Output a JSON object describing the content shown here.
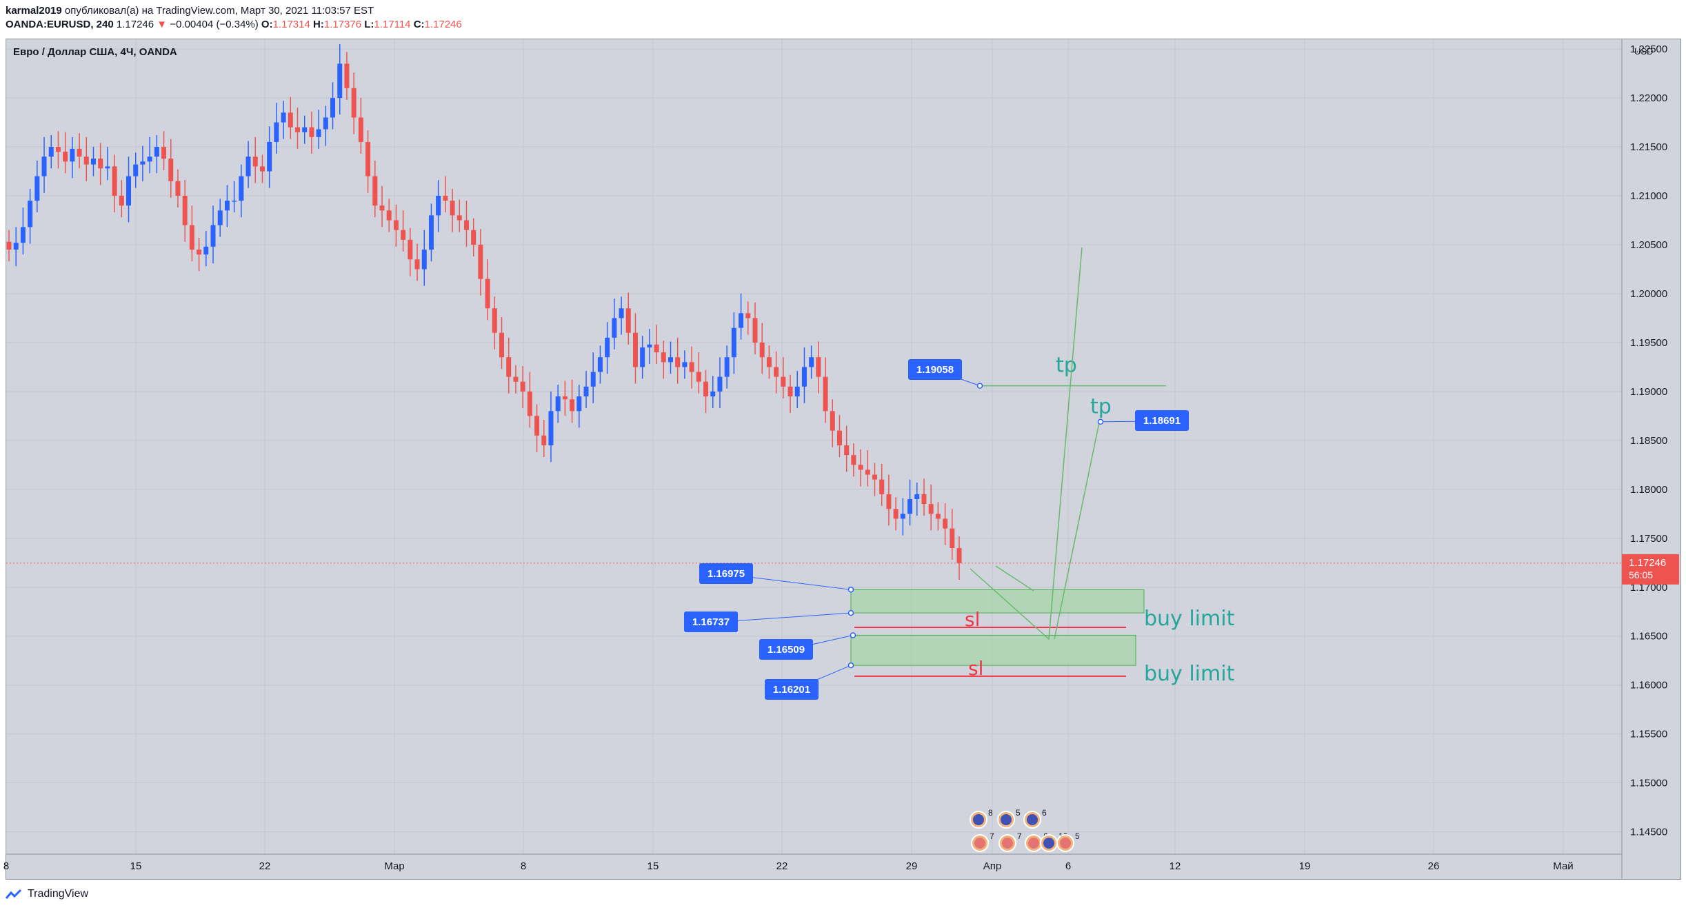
{
  "header": {
    "publisher": "karmal2019",
    "publish_text": "опубликовал(а) на TradingView.com, Март 30, 2021 11:03:57 EST",
    "symbol": "OANDA:EURUSD, 240",
    "last": "1.17246",
    "change": "−0.00404 (−0.34%)",
    "o_label": "O:",
    "o_value": "1.17314",
    "h_label": "H:",
    "h_value": "1.17376",
    "l_label": "L:",
    "l_value": "1.17114",
    "c_label": "C:",
    "c_value": "1.17246"
  },
  "symbol_title": "Евро / Доллар США, 4Ч, OANDA",
  "footer": {
    "brand": "TradingView"
  },
  "colors": {
    "up": "#2962ff",
    "down": "#ef5350",
    "zone_fill": "#a5d6a7",
    "zone_stroke": "#4caf50",
    "tp": "#26a69a",
    "sl": "#f23645",
    "label_bg": "#2962ff"
  },
  "chart_data": {
    "type": "candlestick",
    "currency": "USD",
    "y_ticks": [
      "1.14500",
      "1.15000",
      "1.15500",
      "1.16000",
      "1.16500",
      "1.17000",
      "1.17500",
      "1.18000",
      "1.18500",
      "1.19000",
      "1.19500",
      "1.20000",
      "1.20500",
      "1.21000",
      "1.21500",
      "1.22000",
      "1.22500"
    ],
    "y_range": [
      1.143,
      1.2255
    ],
    "x_ticks": [
      "8",
      "15",
      "22",
      "Мар",
      "8",
      "15",
      "22",
      "29",
      "Апр",
      "6",
      "12",
      "19",
      "26",
      "Май"
    ],
    "current_price": "1.17246",
    "countdown": "56:05",
    "close_path": [
      1.2045,
      1.2052,
      1.2068,
      1.2095,
      1.212,
      1.214,
      1.215,
      1.2145,
      1.2135,
      1.2148,
      1.214,
      1.2132,
      1.2138,
      1.2128,
      1.213,
      1.21,
      1.209,
      1.212,
      1.2132,
      1.2135,
      1.214,
      1.215,
      1.2138,
      1.2115,
      1.21,
      1.207,
      1.2045,
      1.204,
      1.2048,
      1.207,
      1.2085,
      1.2095,
      1.2095,
      1.212,
      1.214,
      1.213,
      1.2125,
      1.2155,
      1.2175,
      1.2185,
      1.217,
      1.2165,
      1.217,
      1.216,
      1.2168,
      1.218,
      1.22,
      1.2235,
      1.221,
      1.218,
      1.2155,
      1.212,
      1.209,
      1.2085,
      1.2075,
      1.2065,
      1.2055,
      1.2035,
      1.2025,
      1.2045,
      1.208,
      1.21,
      1.2095,
      1.208,
      1.2075,
      1.2065,
      1.205,
      1.2015,
      1.1985,
      1.196,
      1.1935,
      1.1915,
      1.191,
      1.19,
      1.1875,
      1.1855,
      1.1845,
      1.188,
      1.1895,
      1.1892,
      1.188,
      1.1895,
      1.1905,
      1.192,
      1.1935,
      1.1955,
      1.1975,
      1.1985,
      1.196,
      1.1925,
      1.1945,
      1.1948,
      1.194,
      1.193,
      1.1935,
      1.1925,
      1.193,
      1.192,
      1.191,
      1.1895,
      1.19,
      1.1915,
      1.1935,
      1.1965,
      1.198,
      1.1975,
      1.195,
      1.1935,
      1.1925,
      1.1915,
      1.1905,
      1.1895,
      1.1905,
      1.1925,
      1.1935,
      1.1915,
      1.188,
      1.186,
      1.1845,
      1.1835,
      1.1825,
      1.182,
      1.1815,
      1.181,
      1.1795,
      1.178,
      1.177,
      1.1775,
      1.179,
      1.1795,
      1.1785,
      1.1775,
      1.177,
      1.176,
      1.174,
      1.17246
    ],
    "annotations": {
      "zones": [
        {
          "label": "buy limit",
          "top": 1.16975,
          "bottom": 1.16737
        },
        {
          "label": "buy limit",
          "top": 1.16509,
          "bottom": 1.16201
        }
      ],
      "price_labels": [
        "1.16975",
        "1.16737",
        "1.16509",
        "1.16201",
        "1.19058",
        "1.18691"
      ],
      "tp": [
        {
          "label": "tp",
          "price": 1.19058
        },
        {
          "label": "tp",
          "price": 1.18691
        }
      ],
      "sl": [
        {
          "label": "sl",
          "price": 1.1659
        },
        {
          "label": "sl",
          "price": 1.1609
        }
      ]
    },
    "events": [
      "8",
      "5",
      "6",
      "7",
      "7",
      "6",
      "10",
      "5"
    ]
  }
}
